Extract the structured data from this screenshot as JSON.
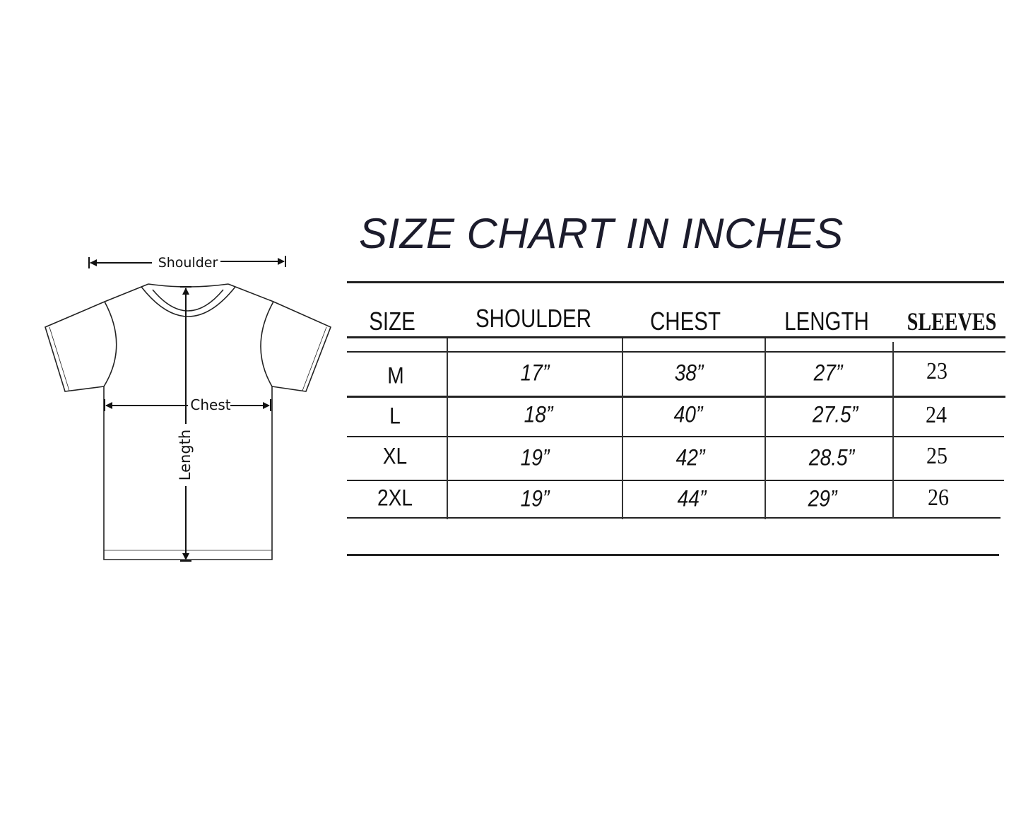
{
  "title": "SIZE CHART IN INCHES",
  "diagram": {
    "labels": {
      "shoulder": "Shoulder",
      "chest": "Chest",
      "length": "Length"
    }
  },
  "table": {
    "headers": [
      "SIZE",
      "SHOULDER",
      "CHEST",
      "LENGTH",
      "SLEEVES"
    ],
    "rows": [
      {
        "size": "M",
        "shoulder": "17”",
        "chest": "38”",
        "length": "27”",
        "sleeves": "23"
      },
      {
        "size": "L",
        "shoulder": "18”",
        "chest": "40”",
        "length": "27.5”",
        "sleeves": "24"
      },
      {
        "size": "XL",
        "shoulder": "19”",
        "chest": "42”",
        "length": "28.5”",
        "sleeves": "25"
      },
      {
        "size": "2XL",
        "shoulder": "19”",
        "chest": "44”",
        "length": "29”",
        "sleeves": "26"
      }
    ]
  }
}
